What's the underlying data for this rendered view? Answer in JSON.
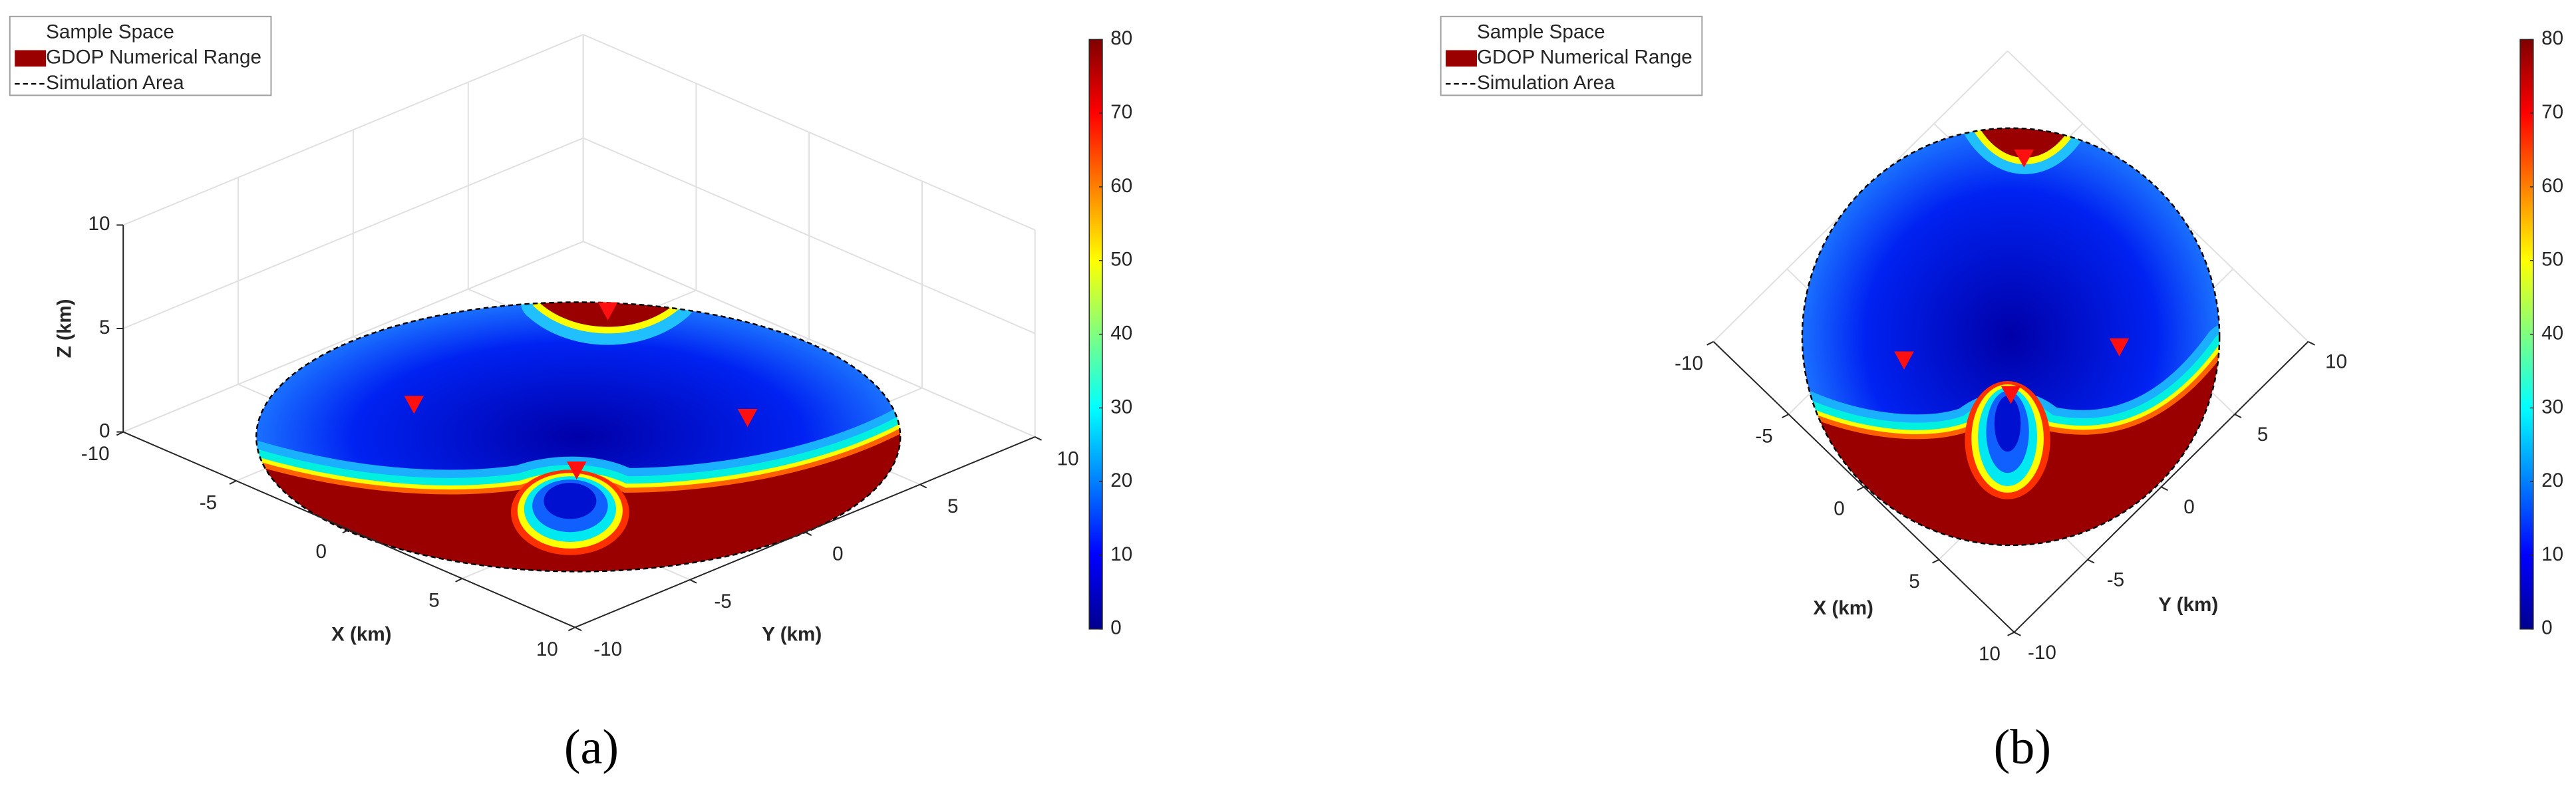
{
  "chart_data": [
    {
      "type": "surface3d",
      "caption": "(a)",
      "legend": [
        "Sample Space",
        "GDOP Numerical Range",
        "Simulation Area"
      ],
      "xlabel": "X (km)",
      "ylabel": "Y (km)",
      "zlabel": "Z (km)",
      "xlim": [
        -10,
        10
      ],
      "ylim": [
        -10,
        10
      ],
      "zlim": [
        0,
        10
      ],
      "xticks": [
        -10,
        -5,
        0,
        5,
        10
      ],
      "yticks": [
        -10,
        -5,
        0,
        5,
        10
      ],
      "zticks": [
        0,
        5,
        10
      ],
      "clim": [
        0,
        80
      ],
      "cticks": [
        0,
        10,
        20,
        30,
        40,
        50,
        60,
        70,
        80
      ],
      "grid": true
    },
    {
      "type": "surface3d",
      "caption": "(b)",
      "legend": [
        "Sample Space",
        "GDOP Numerical Range",
        "Simulation Area"
      ],
      "xlabel": "X (km)",
      "ylabel": "Y (km)",
      "xlim": [
        -10,
        10
      ],
      "ylim": [
        -10,
        10
      ],
      "xticks": [
        -10,
        -5,
        0,
        5,
        10
      ],
      "yticks": [
        -10,
        -5,
        0,
        5,
        10
      ],
      "clim": [
        0,
        80
      ],
      "cticks": [
        0,
        10,
        20,
        30,
        40,
        50,
        60,
        70,
        80
      ],
      "grid": true
    }
  ]
}
